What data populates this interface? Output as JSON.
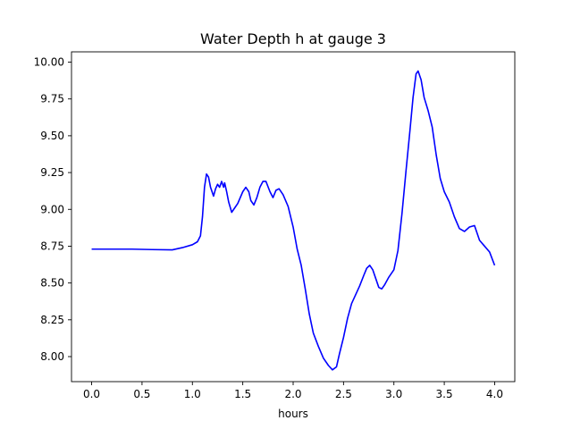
{
  "chart_data": {
    "type": "line",
    "title": "Water Depth h at gauge 3",
    "xlabel": "hours",
    "ylabel": "",
    "xlim": [
      -0.2,
      4.2
    ],
    "ylim": [
      7.83,
      10.07
    ],
    "x_ticks": [
      "0.0",
      "0.5",
      "1.0",
      "1.5",
      "2.0",
      "2.5",
      "3.0",
      "3.5",
      "4.0"
    ],
    "y_ticks": [
      "8.00",
      "8.25",
      "8.50",
      "8.75",
      "9.00",
      "9.25",
      "9.50",
      "9.75",
      "10.00"
    ],
    "grid": false,
    "legend": "none",
    "series": [
      {
        "color": "#0000ff",
        "points": [
          [
            0.0,
            8.73
          ],
          [
            0.2,
            8.73
          ],
          [
            0.4,
            8.73
          ],
          [
            0.6,
            8.727
          ],
          [
            0.8,
            8.725
          ],
          [
            0.9,
            8.74
          ],
          [
            1.0,
            8.76
          ],
          [
            1.05,
            8.78
          ],
          [
            1.08,
            8.82
          ],
          [
            1.1,
            8.95
          ],
          [
            1.12,
            9.15
          ],
          [
            1.14,
            9.24
          ],
          [
            1.16,
            9.22
          ],
          [
            1.18,
            9.15
          ],
          [
            1.21,
            9.09
          ],
          [
            1.23,
            9.14
          ],
          [
            1.25,
            9.17
          ],
          [
            1.27,
            9.15
          ],
          [
            1.29,
            9.19
          ],
          [
            1.31,
            9.15
          ],
          [
            1.32,
            9.18
          ],
          [
            1.34,
            9.12
          ],
          [
            1.36,
            9.05
          ],
          [
            1.39,
            8.98
          ],
          [
            1.42,
            9.01
          ],
          [
            1.45,
            9.04
          ],
          [
            1.5,
            9.12
          ],
          [
            1.53,
            9.15
          ],
          [
            1.56,
            9.12
          ],
          [
            1.58,
            9.06
          ],
          [
            1.61,
            9.03
          ],
          [
            1.64,
            9.08
          ],
          [
            1.67,
            9.15
          ],
          [
            1.7,
            9.19
          ],
          [
            1.73,
            9.19
          ],
          [
            1.77,
            9.12
          ],
          [
            1.8,
            9.08
          ],
          [
            1.83,
            9.13
          ],
          [
            1.86,
            9.14
          ],
          [
            1.9,
            9.1
          ],
          [
            1.95,
            9.02
          ],
          [
            2.0,
            8.88
          ],
          [
            2.04,
            8.73
          ],
          [
            2.08,
            8.62
          ],
          [
            2.12,
            8.46
          ],
          [
            2.16,
            8.29
          ],
          [
            2.2,
            8.16
          ],
          [
            2.25,
            8.07
          ],
          [
            2.3,
            7.99
          ],
          [
            2.35,
            7.94
          ],
          [
            2.39,
            7.91
          ],
          [
            2.43,
            7.93
          ],
          [
            2.46,
            8.02
          ],
          [
            2.5,
            8.13
          ],
          [
            2.54,
            8.26
          ],
          [
            2.58,
            8.36
          ],
          [
            2.62,
            8.42
          ],
          [
            2.66,
            8.48
          ],
          [
            2.7,
            8.55
          ],
          [
            2.73,
            8.6
          ],
          [
            2.76,
            8.62
          ],
          [
            2.79,
            8.59
          ],
          [
            2.82,
            8.53
          ],
          [
            2.85,
            8.47
          ],
          [
            2.88,
            8.46
          ],
          [
            2.91,
            8.49
          ],
          [
            2.95,
            8.54
          ],
          [
            3.0,
            8.59
          ],
          [
            3.04,
            8.72
          ],
          [
            3.08,
            8.97
          ],
          [
            3.12,
            9.26
          ],
          [
            3.16,
            9.54
          ],
          [
            3.19,
            9.76
          ],
          [
            3.22,
            9.92
          ],
          [
            3.24,
            9.94
          ],
          [
            3.27,
            9.88
          ],
          [
            3.3,
            9.76
          ],
          [
            3.34,
            9.67
          ],
          [
            3.38,
            9.56
          ],
          [
            3.42,
            9.37
          ],
          [
            3.46,
            9.21
          ],
          [
            3.5,
            9.12
          ],
          [
            3.55,
            9.05
          ],
          [
            3.6,
            8.95
          ],
          [
            3.65,
            8.87
          ],
          [
            3.7,
            8.85
          ],
          [
            3.75,
            8.88
          ],
          [
            3.8,
            8.89
          ],
          [
            3.85,
            8.79
          ],
          [
            3.9,
            8.75
          ],
          [
            3.95,
            8.71
          ],
          [
            4.0,
            8.62
          ]
        ]
      }
    ]
  }
}
